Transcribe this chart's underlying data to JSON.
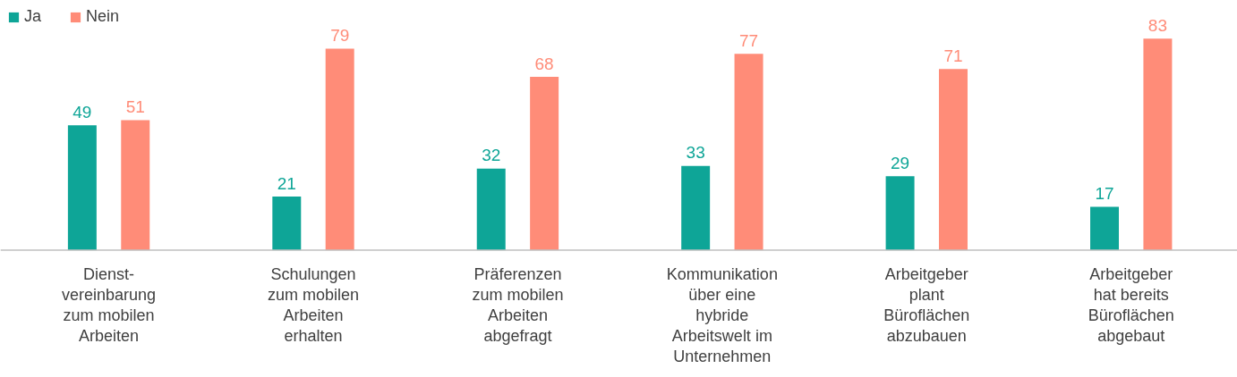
{
  "chart_data": {
    "type": "bar",
    "categories": [
      "Dienst-\nvereinbarung\nzum mobilen\nArbeiten",
      "Schulungen\nzum mobilen\nArbeiten\nerhalten",
      "Präferenzen\nzum mobilen\nArbeiten\nabgefragt",
      "Kommunikation\nüber eine\nhybride\nArbeitswelt im\nUnternehmen",
      "Arbeitgeber\nplant\nBüroflächen\nabzubauen",
      "Arbeitgeber\nhat bereits\nBüroflächen\nabgebaut"
    ],
    "series": [
      {
        "name": "Ja",
        "color": "#0ea597",
        "values": [
          49,
          21,
          32,
          33,
          29,
          17
        ]
      },
      {
        "name": "Nein",
        "color": "#ff8c78",
        "values": [
          51,
          79,
          68,
          77,
          71,
          83
        ]
      }
    ],
    "data_labels": true,
    "legend": "top left",
    "grid": false
  }
}
